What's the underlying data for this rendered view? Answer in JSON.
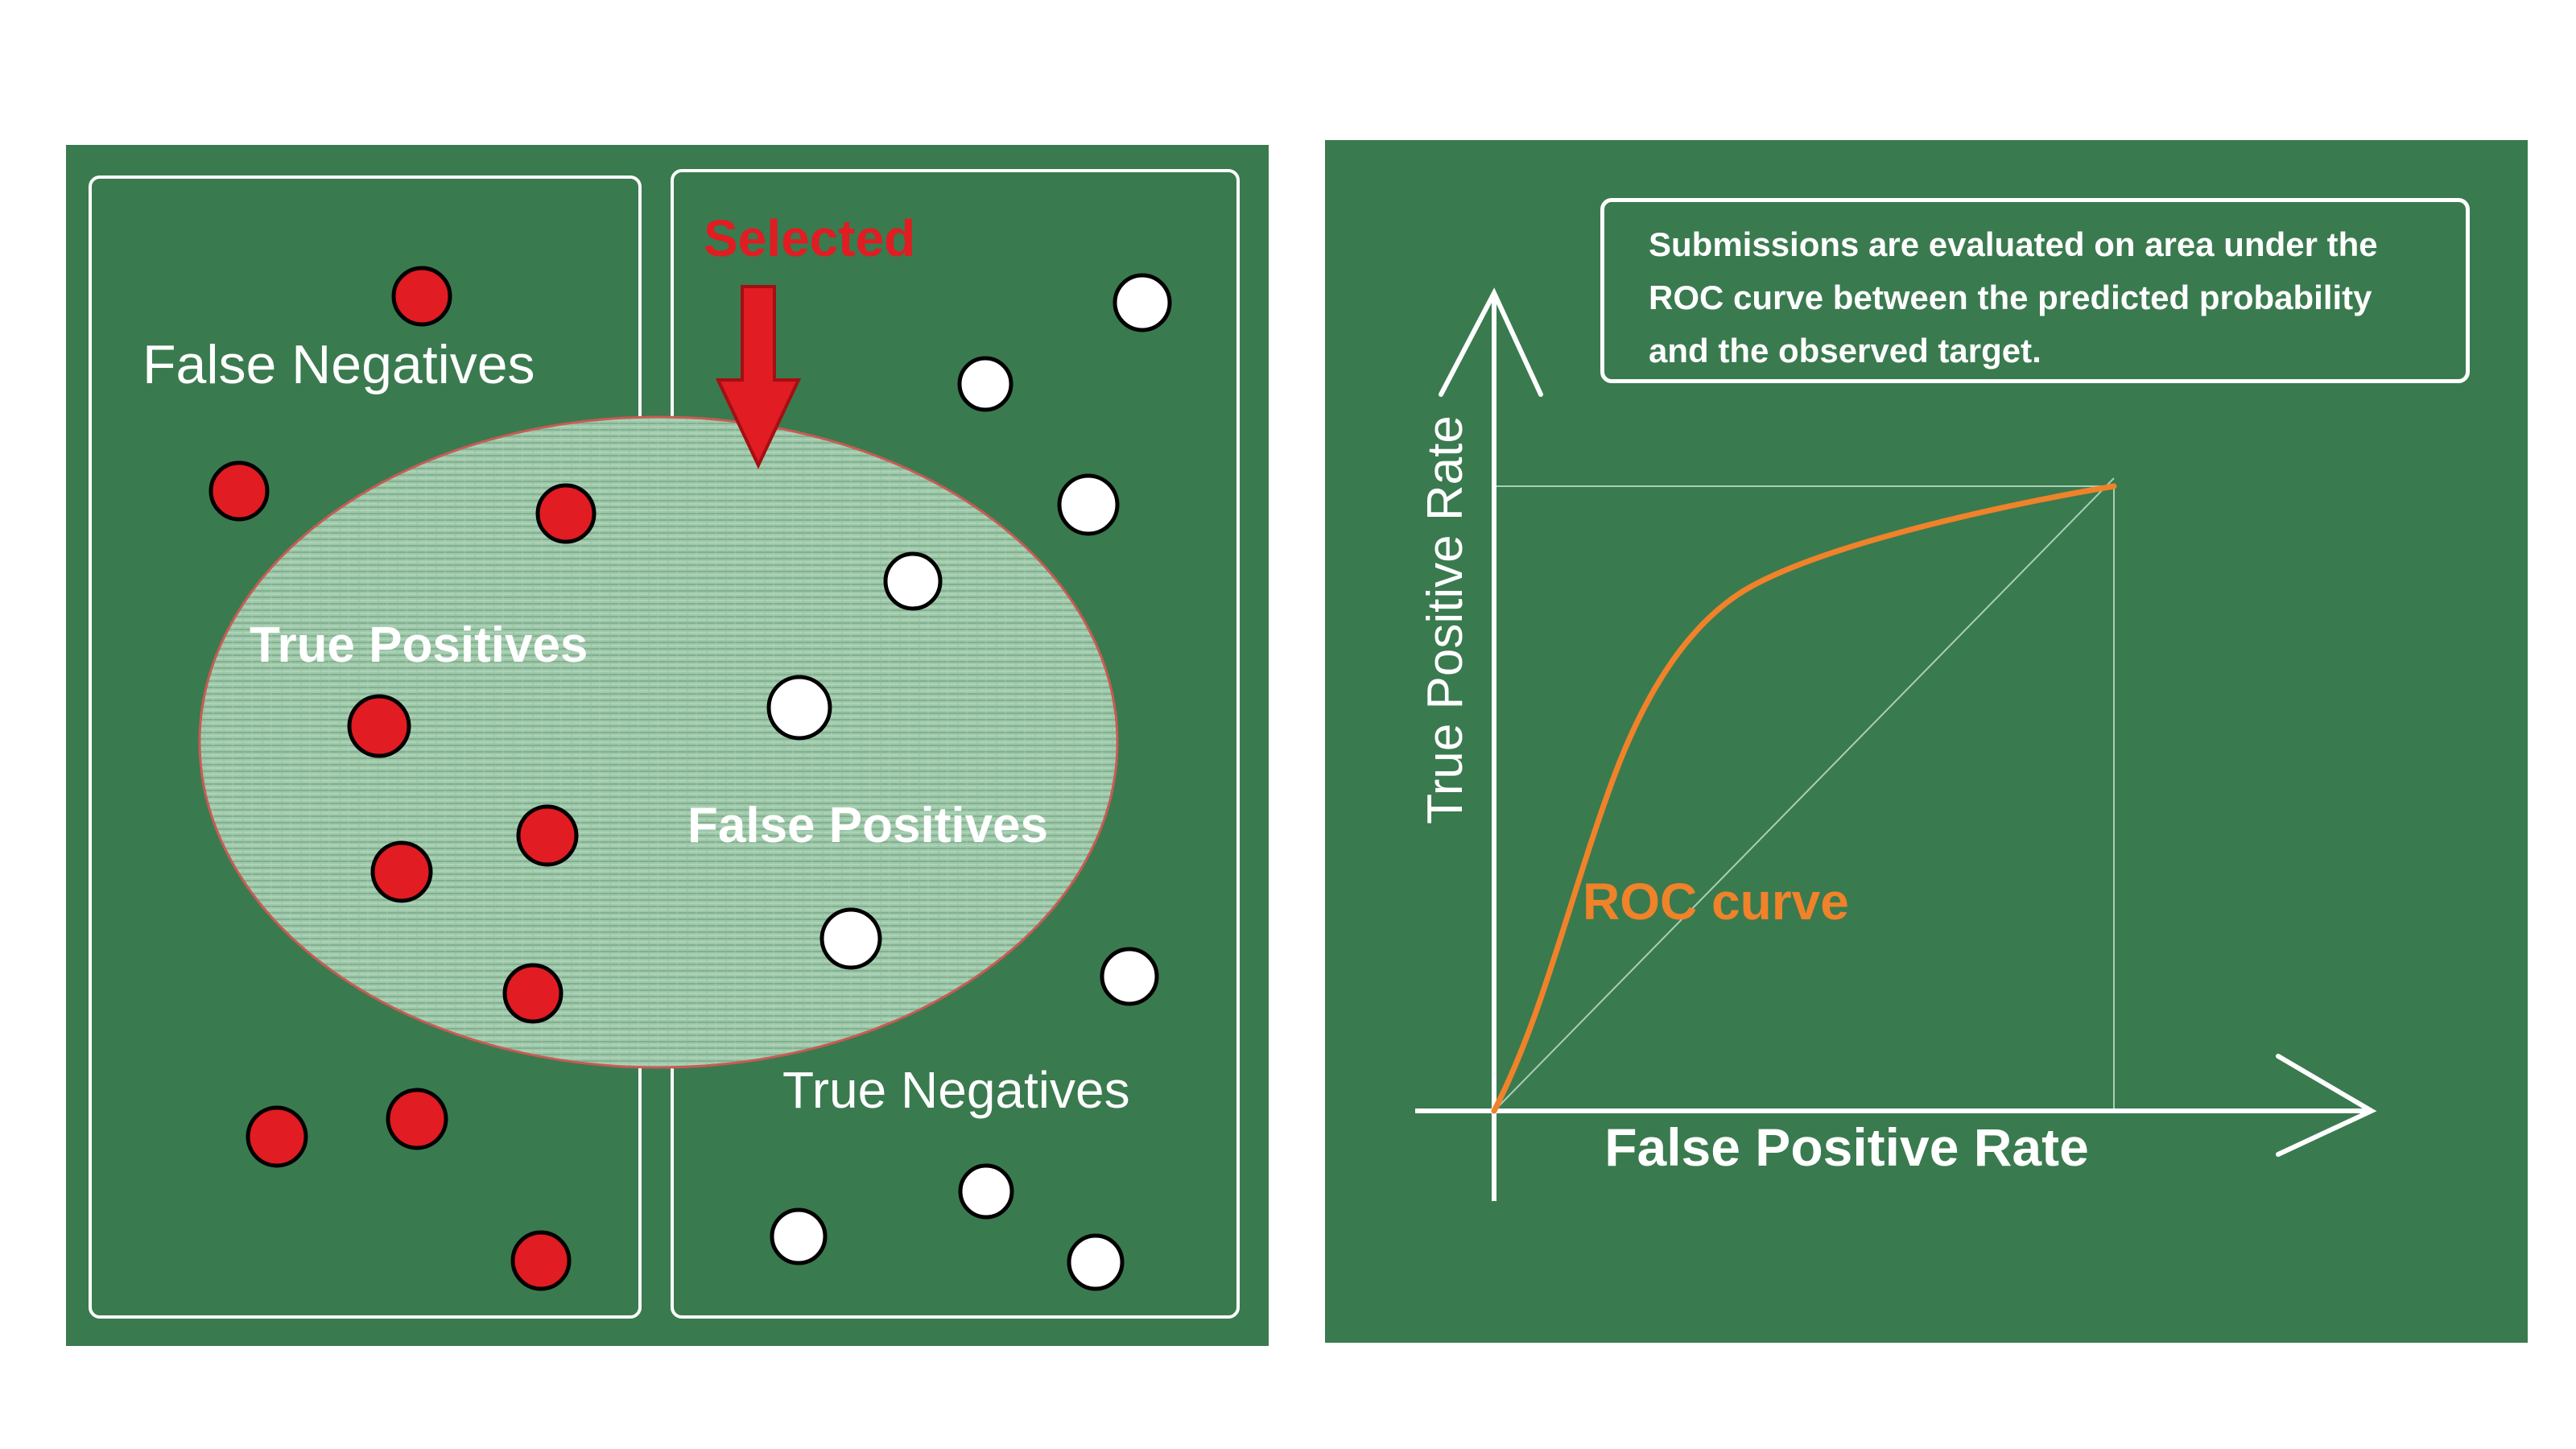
{
  "left_panel": {
    "labels": {
      "false_negatives": "False Negatives",
      "selected": "Selected",
      "true_positives": "True Positives",
      "false_positives": "False Positives",
      "true_negatives": "True Negatives"
    },
    "colors": {
      "background": "#3a7a4f",
      "positive_dot": "#e11c22",
      "negative_dot": "#ffffff",
      "selected_arrow": "#e11c22",
      "selection_border": "#c85b54"
    },
    "groups": {
      "positives": "positive dots",
      "negatives": "negative dots"
    }
  },
  "right_panel": {
    "callout": "Submissions are evaluated on area under the ROC curve between the predicted probability and the observed target.",
    "axes": {
      "x_label": "False Positive Rate",
      "y_label": "True Positive Rate"
    },
    "curve_label": "ROC curve",
    "colors": {
      "background": "#3a7a4f",
      "curve": "#f0822a",
      "axes": "#ffffff",
      "guide_lines": "#a9cfb7"
    }
  }
}
